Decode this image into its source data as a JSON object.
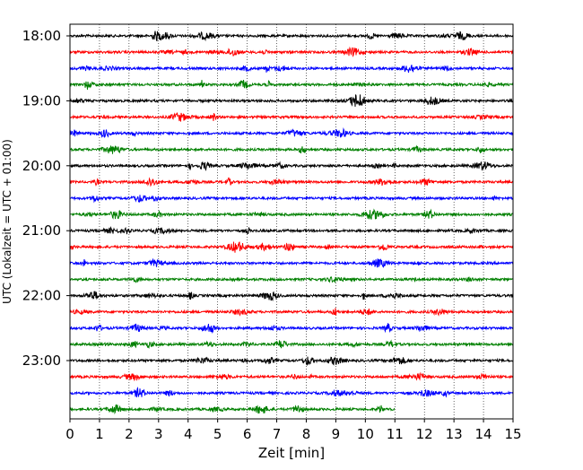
{
  "chart_data": {
    "type": "line",
    "title": "",
    "xlabel": "Zeit  [min]",
    "ylabel": "UTC (Lokalzeit = UTC + 01:00)",
    "xlim": [
      0,
      15
    ],
    "x_ticks": [
      0,
      1,
      2,
      3,
      4,
      5,
      6,
      7,
      8,
      9,
      10,
      11,
      12,
      13,
      14,
      15
    ],
    "y_tick_labels": [
      "18:00",
      "19:00",
      "20:00",
      "21:00",
      "22:00",
      "23:00"
    ],
    "y_tick_rows": [
      0,
      4,
      8,
      12,
      16,
      20
    ],
    "grid": "vertical dotted at each minute",
    "trace_colors": [
      "#000000",
      "#ff0000",
      "#0000ff",
      "#008000"
    ],
    "rows": [
      {
        "start": "18:00",
        "duration_min": 15
      },
      {
        "start": "18:15",
        "duration_min": 15
      },
      {
        "start": "18:30",
        "duration_min": 15
      },
      {
        "start": "18:45",
        "duration_min": 15
      },
      {
        "start": "19:00",
        "duration_min": 15
      },
      {
        "start": "19:15",
        "duration_min": 15
      },
      {
        "start": "19:30",
        "duration_min": 15
      },
      {
        "start": "19:45",
        "duration_min": 15
      },
      {
        "start": "20:00",
        "duration_min": 15
      },
      {
        "start": "20:15",
        "duration_min": 15
      },
      {
        "start": "20:30",
        "duration_min": 15
      },
      {
        "start": "20:45",
        "duration_min": 15
      },
      {
        "start": "21:00",
        "duration_min": 15
      },
      {
        "start": "21:15",
        "duration_min": 15
      },
      {
        "start": "21:30",
        "duration_min": 15
      },
      {
        "start": "21:45",
        "duration_min": 15
      },
      {
        "start": "22:00",
        "duration_min": 15
      },
      {
        "start": "22:15",
        "duration_min": 15
      },
      {
        "start": "22:30",
        "duration_min": 15
      },
      {
        "start": "22:45",
        "duration_min": 15
      },
      {
        "start": "23:00",
        "duration_min": 15
      },
      {
        "start": "23:15",
        "duration_min": 15
      },
      {
        "start": "23:30",
        "duration_min": 15
      },
      {
        "start": "23:45",
        "duration_min": 11
      }
    ]
  }
}
